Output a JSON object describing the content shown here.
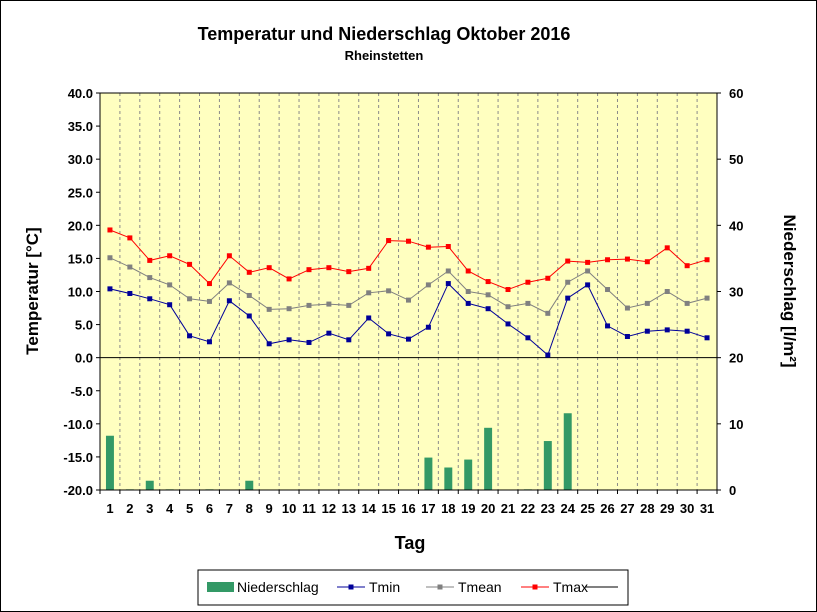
{
  "chart_data": {
    "type": "bar+line",
    "title": "Temperatur und Niederschlag Oktober 2016",
    "subtitle": "Rheinstetten",
    "xlabel": "Tag",
    "ylabel_left": "Temperatur [°C]",
    "ylabel_right": "Niederschlag [l/m²]",
    "ylim_left": [
      -20,
      40
    ],
    "ylim_right": [
      0,
      60
    ],
    "yticks_left": [
      "40.0",
      "35.0",
      "30.0",
      "25.0",
      "20.0",
      "15.0",
      "10.0",
      "5.0",
      "0.0",
      "-5.0",
      "-10.0",
      "-15.0",
      "-20.0"
    ],
    "yticks_right": [
      "60",
      "50",
      "40",
      "30",
      "20",
      "10",
      "0"
    ],
    "categories": [
      "1",
      "2",
      "3",
      "4",
      "5",
      "6",
      "7",
      "8",
      "9",
      "10",
      "11",
      "12",
      "13",
      "14",
      "15",
      "16",
      "17",
      "18",
      "19",
      "20",
      "21",
      "22",
      "23",
      "24",
      "25",
      "26",
      "27",
      "28",
      "29",
      "30",
      "31"
    ],
    "precipitation": {
      "name": "Niederschlag",
      "color": "#339966",
      "values": [
        8.2,
        0.1,
        1.4,
        0.1,
        0,
        0.1,
        0,
        1.4,
        0,
        0,
        0,
        0,
        0,
        0,
        0,
        0,
        4.9,
        3.4,
        4.6,
        9.4,
        0,
        0.1,
        7.4,
        11.6,
        0,
        0,
        0,
        0,
        0,
        0,
        0
      ]
    },
    "series": [
      {
        "name": "Tmin",
        "color": "#000099",
        "values": [
          10.4,
          9.7,
          8.9,
          8.0,
          3.3,
          2.4,
          8.6,
          6.3,
          2.1,
          2.7,
          2.3,
          3.7,
          2.7,
          6.0,
          3.6,
          2.8,
          4.6,
          11.2,
          8.2,
          7.4,
          5.1,
          3.0,
          0.4,
          9.0,
          11.0,
          4.8,
          3.2,
          4.0,
          4.2,
          4.0,
          3.0
        ]
      },
      {
        "name": "Tmean",
        "color": "#808080",
        "values": [
          15.1,
          13.7,
          12.1,
          11.0,
          8.9,
          8.5,
          11.3,
          9.4,
          7.3,
          7.4,
          7.9,
          8.1,
          7.9,
          9.8,
          10.1,
          8.7,
          11.0,
          13.1,
          10.0,
          9.5,
          7.7,
          8.2,
          6.7,
          11.4,
          13.1,
          10.3,
          7.5,
          8.2,
          10.0,
          8.2,
          9.0
        ]
      },
      {
        "name": "Tmax",
        "color": "#ff0000",
        "values": [
          19.3,
          18.1,
          14.7,
          15.4,
          14.1,
          11.2,
          15.4,
          12.9,
          13.6,
          11.9,
          13.3,
          13.6,
          13.0,
          13.5,
          17.7,
          17.6,
          16.7,
          16.8,
          13.1,
          11.5,
          10.3,
          11.4,
          12.0,
          14.6,
          14.4,
          14.8,
          14.9,
          14.5,
          16.6,
          13.9,
          14.8
        ]
      }
    ],
    "legend": {
      "placement": "bottom",
      "items": [
        "Niederschlag",
        "Tmin",
        "Tmean",
        "Tmax"
      ]
    },
    "plot_background": "#ffffc0",
    "grid": "vertical dashed",
    "zero_line": true
  }
}
